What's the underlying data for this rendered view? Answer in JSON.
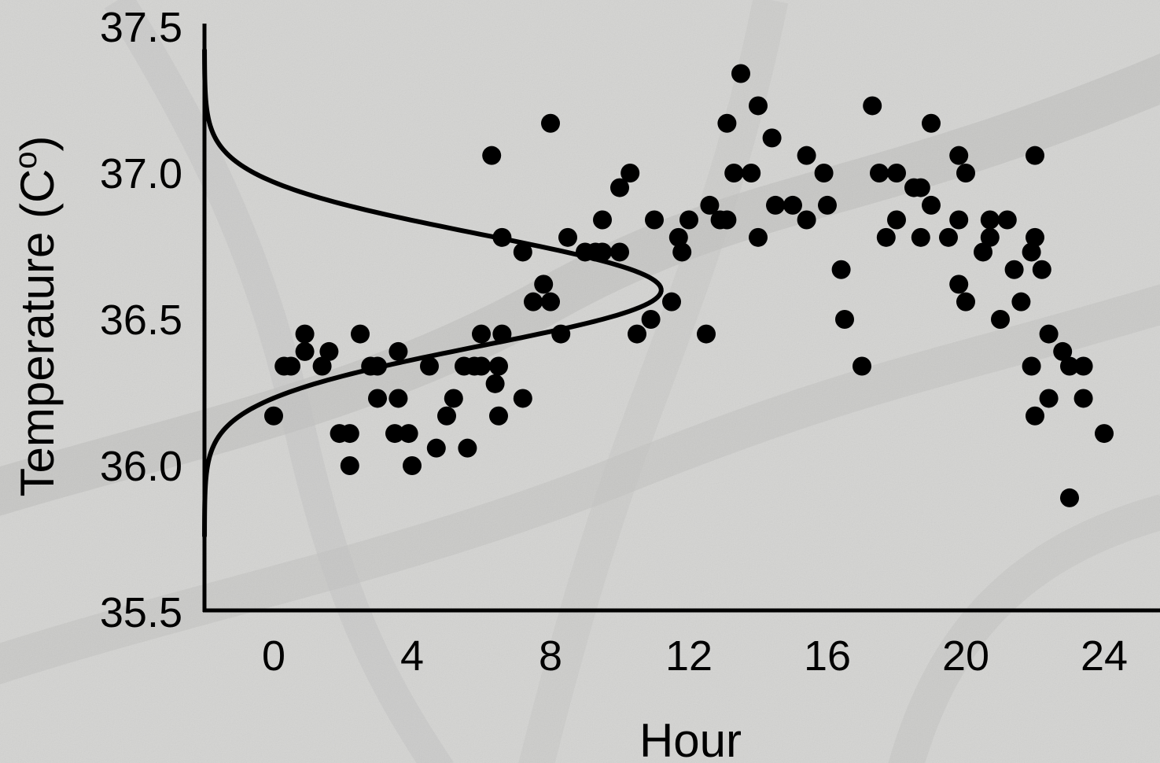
{
  "chart_data": {
    "type": "scatter",
    "title": "",
    "xlabel": "Hour",
    "ylabel_main": "Temperature (C",
    "ylabel_sup": "o",
    "ylabel_close": ")",
    "xlim": [
      -2,
      25
    ],
    "ylim": [
      35.5,
      37.5
    ],
    "xticks": [
      "0",
      "4",
      "8",
      "12",
      "16",
      "20",
      "24"
    ],
    "xtick_values": [
      0,
      4,
      8,
      12,
      16,
      20,
      24
    ],
    "yticks": [
      "35.5",
      "36.0",
      "36.5",
      "37.0",
      "37.5"
    ],
    "ytick_values": [
      35.5,
      36.0,
      36.5,
      37.0,
      37.5
    ],
    "grid": false,
    "point_color": "#000000",
    "background_color": "#d4d4d2",
    "distribution_curve": {
      "type": "normal-density",
      "baseline_x": -2,
      "mean": 36.6,
      "peak_x": 11.2,
      "y_range": [
        35.76,
        37.42
      ]
    },
    "series": [
      {
        "points": [
          [
            0.0,
            36.17
          ],
          [
            0.3,
            36.34
          ],
          [
            0.5,
            36.34
          ],
          [
            0.9,
            36.45
          ],
          [
            0.9,
            36.39
          ],
          [
            1.4,
            36.34
          ],
          [
            1.6,
            36.39
          ],
          [
            1.9,
            36.11
          ],
          [
            2.2,
            36.11
          ],
          [
            2.2,
            36.0
          ],
          [
            2.5,
            36.45
          ],
          [
            2.8,
            36.34
          ],
          [
            3.0,
            36.34
          ],
          [
            3.0,
            36.23
          ],
          [
            3.5,
            36.11
          ],
          [
            3.6,
            36.39
          ],
          [
            3.6,
            36.23
          ],
          [
            3.9,
            36.11
          ],
          [
            4.0,
            36.0
          ],
          [
            4.5,
            36.34
          ],
          [
            4.7,
            36.06
          ],
          [
            5.0,
            36.17
          ],
          [
            5.2,
            36.23
          ],
          [
            5.5,
            36.34
          ],
          [
            5.6,
            36.06
          ],
          [
            5.8,
            36.34
          ],
          [
            6.0,
            36.34
          ],
          [
            6.0,
            36.45
          ],
          [
            6.3,
            37.06
          ],
          [
            6.4,
            36.28
          ],
          [
            6.5,
            36.17
          ],
          [
            6.5,
            36.34
          ],
          [
            6.6,
            36.45
          ],
          [
            6.6,
            36.78
          ],
          [
            7.2,
            36.23
          ],
          [
            7.2,
            36.73
          ],
          [
            7.5,
            36.56
          ],
          [
            7.8,
            36.62
          ],
          [
            8.0,
            36.56
          ],
          [
            8.0,
            37.17
          ],
          [
            8.3,
            36.45
          ],
          [
            8.5,
            36.78
          ],
          [
            9.0,
            36.73
          ],
          [
            9.3,
            36.73
          ],
          [
            9.5,
            36.84
          ],
          [
            9.5,
            36.73
          ],
          [
            10.0,
            36.73
          ],
          [
            10.0,
            36.95
          ],
          [
            10.3,
            37.0
          ],
          [
            10.5,
            36.45
          ],
          [
            10.9,
            36.5
          ],
          [
            11.0,
            36.84
          ],
          [
            11.5,
            36.56
          ],
          [
            11.7,
            36.78
          ],
          [
            11.8,
            36.73
          ],
          [
            12.0,
            36.84
          ],
          [
            12.5,
            36.45
          ],
          [
            12.6,
            36.89
          ],
          [
            12.9,
            36.84
          ],
          [
            13.1,
            36.84
          ],
          [
            13.1,
            37.17
          ],
          [
            13.3,
            37.0
          ],
          [
            13.5,
            37.34
          ],
          [
            13.8,
            37.0
          ],
          [
            14.0,
            37.23
          ],
          [
            14.0,
            36.78
          ],
          [
            14.4,
            37.12
          ],
          [
            14.5,
            36.89
          ],
          [
            15.0,
            36.89
          ],
          [
            15.4,
            37.06
          ],
          [
            15.4,
            36.84
          ],
          [
            15.9,
            37.0
          ],
          [
            16.0,
            36.89
          ],
          [
            16.4,
            36.67
          ],
          [
            16.5,
            36.5
          ],
          [
            17.0,
            36.34
          ],
          [
            17.3,
            37.23
          ],
          [
            17.5,
            37.0
          ],
          [
            17.7,
            36.78
          ],
          [
            18.0,
            37.0
          ],
          [
            18.0,
            36.84
          ],
          [
            18.5,
            36.95
          ],
          [
            18.7,
            36.95
          ],
          [
            18.7,
            36.78
          ],
          [
            19.0,
            36.89
          ],
          [
            19.0,
            37.17
          ],
          [
            19.5,
            36.78
          ],
          [
            19.8,
            37.06
          ],
          [
            19.8,
            36.84
          ],
          [
            19.8,
            36.62
          ],
          [
            20.0,
            37.0
          ],
          [
            20.0,
            36.56
          ],
          [
            20.5,
            36.73
          ],
          [
            20.7,
            36.84
          ],
          [
            20.7,
            36.78
          ],
          [
            21.0,
            36.5
          ],
          [
            21.2,
            36.84
          ],
          [
            21.4,
            36.67
          ],
          [
            21.6,
            36.56
          ],
          [
            21.9,
            36.73
          ],
          [
            21.9,
            36.34
          ],
          [
            22.0,
            36.78
          ],
          [
            22.0,
            37.06
          ],
          [
            22.0,
            36.17
          ],
          [
            22.2,
            36.67
          ],
          [
            22.4,
            36.23
          ],
          [
            22.4,
            36.45
          ],
          [
            22.8,
            36.39
          ],
          [
            23.0,
            36.34
          ],
          [
            23.0,
            35.89
          ],
          [
            23.4,
            36.34
          ],
          [
            23.4,
            36.23
          ],
          [
            24.0,
            36.11
          ]
        ]
      }
    ]
  }
}
